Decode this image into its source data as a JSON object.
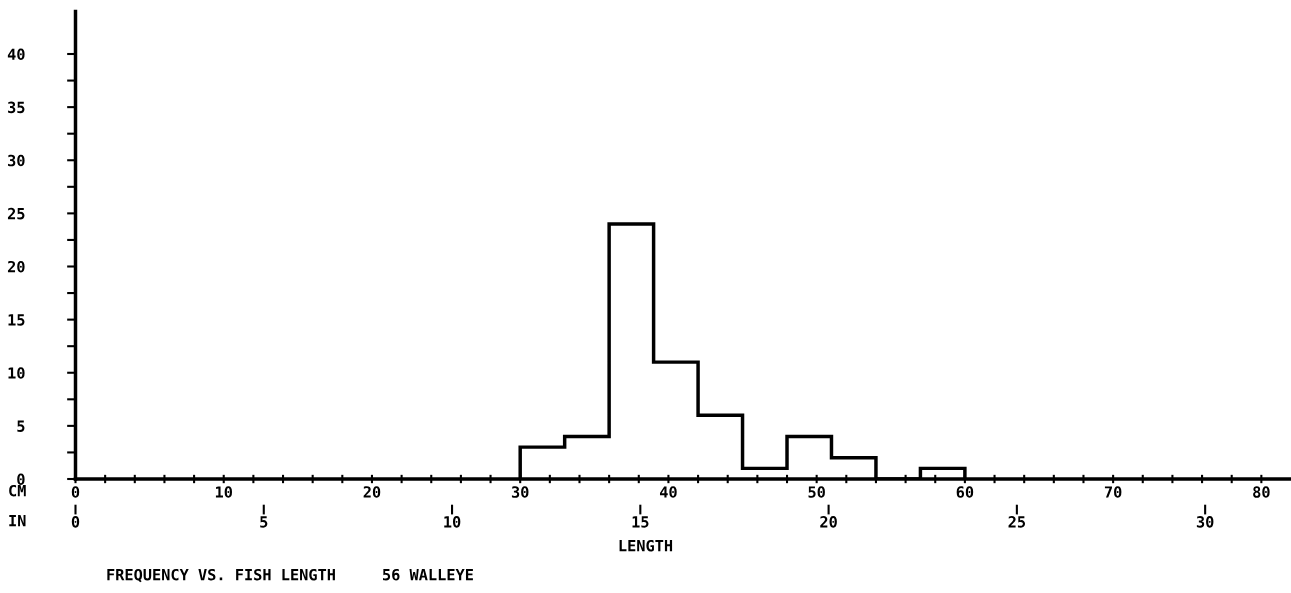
{
  "chart_data": {
    "type": "histogram",
    "title": "FREQUENCY VS. FISH LENGTH     56 WALLEYE",
    "xlabel": "LENGTH",
    "bins": [
      30,
      33,
      36,
      39,
      42,
      45,
      48,
      51,
      54,
      57,
      60
    ],
    "values": [
      3,
      4,
      24,
      11,
      6,
      1,
      4,
      2,
      0,
      1
    ],
    "color": "#000000",
    "xlim": [
      0,
      82
    ],
    "xticks": [
      0,
      {
        "value": 2,
        "label": null
      },
      {
        "value": 4,
        "label": null
      },
      {
        "value": 6,
        "label": null
      },
      {
        "value": 8,
        "label": null
      },
      10,
      {
        "value": 12,
        "label": null
      },
      {
        "value": 14,
        "label": null
      },
      {
        "value": 16,
        "label": null
      },
      {
        "value": 18,
        "label": null
      },
      20,
      {
        "value": 22,
        "label": null
      },
      {
        "value": 24,
        "label": null
      },
      {
        "value": 26,
        "label": null
      },
      {
        "value": 28,
        "label": null
      },
      30,
      {
        "value": 32,
        "label": null
      },
      {
        "value": 34,
        "label": null
      },
      {
        "value": 36,
        "label": null
      },
      {
        "value": 38,
        "label": null
      },
      40,
      {
        "value": 42,
        "label": null
      },
      {
        "value": 44,
        "label": null
      },
      {
        "value": 46,
        "label": null
      },
      {
        "value": 48,
        "label": null
      },
      50,
      {
        "value": 52,
        "label": null
      },
      {
        "value": 54,
        "label": null
      },
      {
        "value": 56,
        "label": null
      },
      {
        "value": 58,
        "label": null
      },
      60,
      {
        "value": 62,
        "label": null
      },
      {
        "value": 64,
        "label": null
      },
      {
        "value": 66,
        "label": null
      },
      {
        "value": 68,
        "label": null
      },
      70,
      {
        "value": 72,
        "label": null
      },
      {
        "value": 74,
        "label": null
      },
      {
        "value": 76,
        "label": null
      },
      {
        "value": 78,
        "label": null
      },
      80
    ],
    "x2lim": [
      0,
      32.28
    ],
    "x2ticks": [
      0,
      5,
      10,
      15,
      20,
      25,
      30
    ],
    "ylim": [
      0,
      44
    ],
    "yticks": [
      0,
      {
        "value": 2.5,
        "label": null
      },
      5,
      {
        "value": 7.5,
        "label": null
      },
      10,
      {
        "value": 12.5,
        "label": null
      },
      15,
      {
        "value": 17.5,
        "label": null
      },
      20,
      {
        "value": 22.5,
        "label": null
      },
      25,
      {
        "value": 27.5,
        "label": null
      },
      30,
      {
        "value": 32.5,
        "label": null
      },
      35,
      {
        "value": 37.5,
        "label": null
      },
      40
    ],
    "annotations": [
      "CM",
      "IN"
    ],
    "grid": false,
    "legend": false
  }
}
